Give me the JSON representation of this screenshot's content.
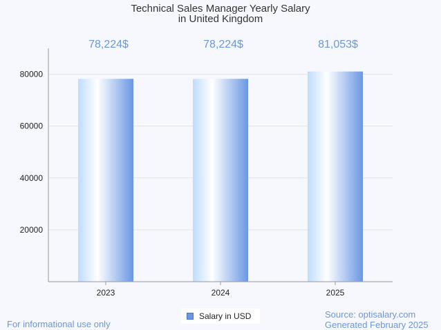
{
  "chart_data": {
    "type": "bar",
    "title_line1": "Technical Sales Manager Yearly Salary",
    "title_line2": "in United Kingdom",
    "categories": [
      "2023",
      "2024",
      "2025"
    ],
    "series": [
      {
        "name": "Salary in USD",
        "values": [
          78224,
          78224,
          81053
        ]
      }
    ],
    "data_labels": [
      "78,224$",
      "78,224$",
      "81,053$"
    ],
    "y_ticks": [
      20000,
      40000,
      60000,
      80000
    ],
    "ylim": [
      0,
      90000
    ],
    "grid": true,
    "legend_position": "bottom-center",
    "colors": {
      "bar_light": "#ffffff",
      "bar_mid": "#bfdcff",
      "bar_dark": "#6a97e3",
      "label": "#6a97d8",
      "grid": "#e3e3e3",
      "axis": "#999999"
    }
  },
  "footer": {
    "disclaimer": "For informational use only",
    "source": "Source: optisalary.com",
    "generated": "Generated February 2025"
  }
}
